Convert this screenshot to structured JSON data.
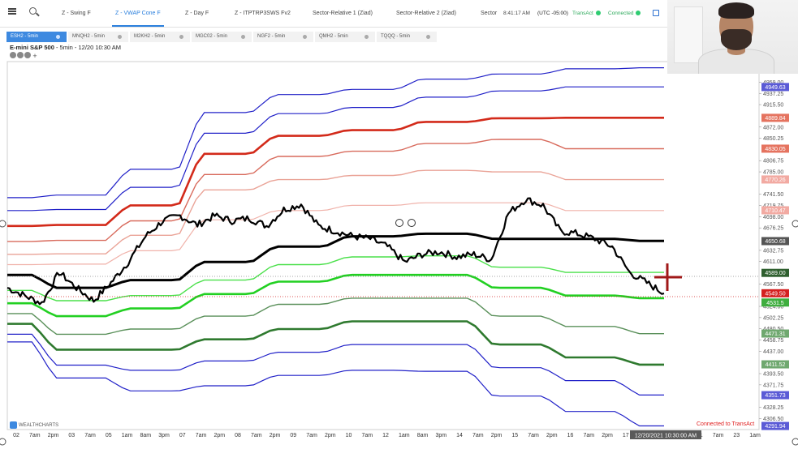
{
  "toolbar": {
    "tabs": [
      {
        "label": "Z - Swing F"
      },
      {
        "label": "Z - VWAP Cone F"
      },
      {
        "label": "Z - Day F"
      },
      {
        "label": "Z - ITPTRP3SWS Fv2"
      },
      {
        "label": "Sector-Relative 1 (Ziad)"
      },
      {
        "label": "Sector-Relative 2 (Ziad)"
      },
      {
        "label": "Sector"
      }
    ],
    "active_tab": "Z - VWAP Cone F",
    "time": "8:41:17 AM",
    "timezone": "(UTC -05:00)",
    "broker": "TransAct",
    "connection": "Connected"
  },
  "symbol_tabs": [
    {
      "label": "ESH2 - 5min"
    },
    {
      "label": "MNQH2 - 5min"
    },
    {
      "label": "M2KH2 - 5min"
    },
    {
      "label": "MGC02 - 5min"
    },
    {
      "label": "NGF2 - 5min"
    },
    {
      "label": "QMH2 - 5min"
    },
    {
      "label": "TQQQ - 5min"
    }
  ],
  "chart_header": {
    "name": "E-mini S&P 500",
    "details": " - 5min - 12/20 10:30 AM"
  },
  "chart_data": {
    "type": "line",
    "ylim": [
      4285,
      4999
    ],
    "y_ticks": [
      4980.75,
      4959.0,
      4937.25,
      4915.5,
      4872.0,
      4850.25,
      4806.75,
      4785.0,
      4741.5,
      4719.75,
      4698.0,
      4676.25,
      4632.75,
      4611.0,
      4567.5,
      4524.0,
      4502.25,
      4480.5,
      4458.75,
      4437.0,
      4393.5,
      4371.75,
      4328.25,
      4306.5
    ],
    "x_tick_labels": [
      "02",
      "7am",
      "2pm",
      "03",
      "7am",
      "05",
      "1am",
      "8am",
      "3pm",
      "07",
      "7am",
      "2pm",
      "08",
      "7am",
      "2pm",
      "09",
      "7am",
      "2pm",
      "10",
      "7am",
      "12",
      "1am",
      "8am",
      "3pm",
      "14",
      "7am",
      "2pm",
      "15",
      "7am",
      "2pm",
      "16",
      "7am",
      "2pm",
      "17",
      "7am",
      "19",
      "8pm",
      "21",
      "7am",
      "23",
      "1am"
    ],
    "price_labels": [
      {
        "value": "4949.63",
        "color": "#5b5bd6"
      },
      {
        "value": "4889.84",
        "color": "#e5735f"
      },
      {
        "value": "4830.05",
        "color": "#e5735f"
      },
      {
        "value": "4770.26",
        "color": "#f2aaa2"
      },
      {
        "value": "4710.47",
        "color": "#f2aaa2"
      },
      {
        "value": "4650.68",
        "color": "#555555"
      },
      {
        "value": "4589.00",
        "color": "#2f5f2f"
      },
      {
        "value": "4549.50",
        "color": "#d42020"
      },
      {
        "value": "4531.5",
        "color": "#3fae3f"
      },
      {
        "value": "4471.31",
        "color": "#6fa86f"
      },
      {
        "value": "4411.52",
        "color": "#6fa86f"
      },
      {
        "value": "4351.73",
        "color": "#5b5bd6"
      },
      {
        "value": "4291.94",
        "color": "#5b5bd6"
      }
    ],
    "crosshair_label": "12/20/2021 10:30:00 AM",
    "series": [
      {
        "color": "#2020c8",
        "levels": [
          4735,
          4740,
          4790,
          4900,
          4935,
          4945,
          4965,
          4975,
          4985,
          4987
        ]
      },
      {
        "color": "#2020c8",
        "levels": [
          4710,
          4712,
          4755,
          4860,
          4898,
          4910,
          4930,
          4942,
          4950,
          4950
        ]
      },
      {
        "color": "#d32a1a",
        "levels": [
          4680,
          4682,
          4720,
          4820,
          4855,
          4866,
          4882,
          4889,
          4890,
          4890
        ]
      },
      {
        "color": "#d86a5c",
        "levels": [
          4650,
          4652,
          4690,
          4780,
          4815,
          4825,
          4840,
          4848,
          4830,
          4830
        ]
      },
      {
        "color": "#eaa397",
        "levels": [
          4625,
          4626,
          4662,
          4750,
          4770,
          4778,
          4788,
          4785,
          4770,
          4770
        ]
      },
      {
        "color": "#f0b2aa",
        "levels": [
          4605,
          4606,
          4632,
          4692,
          4710,
          4720,
          4725,
          4725,
          4710,
          4710
        ]
      },
      {
        "color": "#000000",
        "levels": [
          4585,
          4560,
          4575,
          4610,
          4640,
          4660,
          4665,
          4655,
          4655,
          4651
        ]
      },
      {
        "color": "#4ae04a",
        "levels": [
          4555,
          4535,
          4545,
          4575,
          4605,
          4620,
          4622,
          4600,
          4590,
          4590
        ]
      },
      {
        "color": "#22d022",
        "levels": [
          4530,
          4505,
          4520,
          4548,
          4572,
          4585,
          4585,
          4560,
          4545,
          4540
        ]
      },
      {
        "color": "#5a905a",
        "levels": [
          4510,
          4470,
          4480,
          4505,
          4528,
          4540,
          4540,
          4505,
          4485,
          4471
        ]
      },
      {
        "color": "#2f7a2f",
        "levels": [
          4490,
          4440,
          4440,
          4460,
          4480,
          4495,
          4495,
          4450,
          4425,
          4411
        ]
      },
      {
        "color": "#2020c8",
        "levels": [
          4470,
          4410,
          4400,
          4418,
          4435,
          4450,
          4450,
          4405,
          4380,
          4352
        ]
      },
      {
        "color": "#2020c8",
        "levels": [
          4455,
          4385,
          4360,
          4370,
          4390,
          4400,
          4398,
          4350,
          4320,
          4292
        ]
      }
    ],
    "price_series": [
      4560,
      4545,
      4530,
      4590,
      4560,
      4535,
      4570,
      4610,
      4660,
      4690,
      4700,
      4682,
      4700,
      4690,
      4695,
      4680,
      4712,
      4722,
      4680,
      4670,
      4660,
      4655,
      4640,
      4610,
      4625,
      4630,
      4620,
      4625,
      4615,
      4705,
      4732,
      4720,
      4670,
      4665,
      4655,
      4640,
      4590,
      4570,
      4549
    ]
  },
  "footer": {
    "logo_text": "WEALTHCHARTS",
    "connection_status": "Connected to TransAct"
  }
}
